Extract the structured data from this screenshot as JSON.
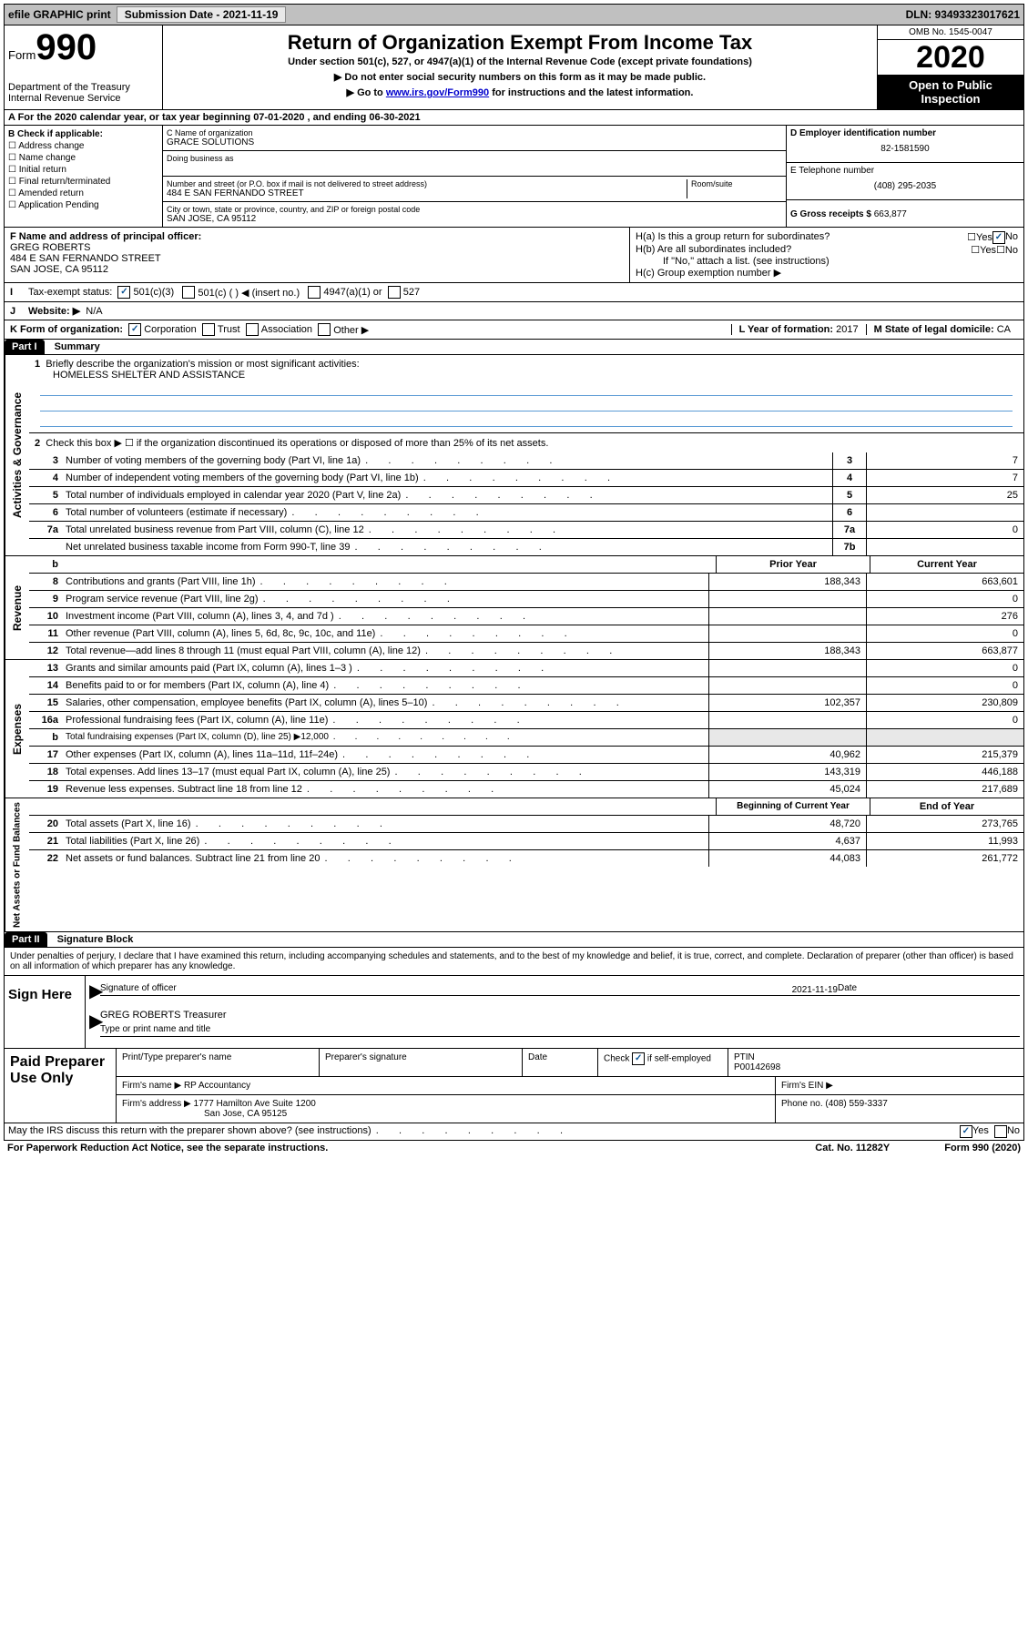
{
  "topbar": {
    "efile": "efile GRAPHIC print",
    "sub_label": "Submission Date - 2021-11-19",
    "dln": "DLN: 93493323017621"
  },
  "header": {
    "form_small": "Form",
    "form_num": "990",
    "dept": "Department of the Treasury",
    "irs": "Internal Revenue Service",
    "title": "Return of Organization Exempt From Income Tax",
    "sub1": "Under section 501(c), 527, or 4947(a)(1) of the Internal Revenue Code (except private foundations)",
    "sub2": "▶ Do not enter social security numbers on this form as it may be made public.",
    "sub3_pre": "▶ Go to ",
    "sub3_link": "www.irs.gov/Form990",
    "sub3_post": " for instructions and the latest information.",
    "omb": "OMB No. 1545-0047",
    "year": "2020",
    "open": "Open to Public Inspection"
  },
  "sectionA": "A For the 2020 calendar year, or tax year beginning 07-01-2020    , and ending 06-30-2021",
  "colB": {
    "title": "B Check if applicable:",
    "items": [
      "Address change",
      "Name change",
      "Initial return",
      "Final return/terminated",
      "Amended return",
      "Application Pending"
    ]
  },
  "colC": {
    "name_label": "C Name of organization",
    "name": "GRACE SOLUTIONS",
    "dba_label": "Doing business as",
    "addr_label": "Number and street (or P.O. box if mail is not delivered to street address)",
    "room_label": "Room/suite",
    "addr": "484 E SAN FERNANDO STREET",
    "city_label": "City or town, state or province, country, and ZIP or foreign postal code",
    "city": "SAN JOSE, CA  95112"
  },
  "colD": {
    "ein_label": "D Employer identification number",
    "ein": "82-1581590",
    "tel_label": "E Telephone number",
    "tel": "(408) 295-2035",
    "gross_label": "G Gross receipts $",
    "gross": "663,877"
  },
  "sectionF": {
    "label": "F Name and address of principal officer:",
    "name": "GREG ROBERTS",
    "addr1": "484 E SAN FERNANDO STREET",
    "addr2": "SAN JOSE, CA  95112"
  },
  "sectionH": {
    "a": "H(a)  Is this a group return for subordinates?",
    "b": "H(b)  Are all subordinates included?",
    "b2": "If \"No,\" attach a list. (see instructions)",
    "c": "H(c)  Group exemption number ▶"
  },
  "taxExempt": {
    "label": "Tax-exempt status:",
    "opts": [
      "501(c)(3)",
      "501(c) (   ) ◀ (insert no.)",
      "4947(a)(1) or",
      "527"
    ]
  },
  "rowJ": {
    "label": "Website: ▶",
    "val": "N/A"
  },
  "rowK": {
    "label": "K Form of organization:",
    "opts": [
      "Corporation",
      "Trust",
      "Association",
      "Other ▶"
    ],
    "l_label": "L Year of formation:",
    "l_val": "2017",
    "m_label": "M State of legal domicile:",
    "m_val": "CA"
  },
  "part1": {
    "hdr": "Part I",
    "title": "Summary"
  },
  "governance": {
    "sidelabel": "Activities & Governance",
    "line1": "Briefly describe the organization's mission or most significant activities:",
    "mission": "HOMELESS SHELTER AND ASSISTANCE",
    "line2": "Check this box ▶ ☐  if the organization discontinued its operations or disposed of more than 25% of its net assets.",
    "rows": [
      {
        "n": "3",
        "label": "Number of voting members of the governing body (Part VI, line 1a)",
        "box": "3",
        "val": "7"
      },
      {
        "n": "4",
        "label": "Number of independent voting members of the governing body (Part VI, line 1b)",
        "box": "4",
        "val": "7"
      },
      {
        "n": "5",
        "label": "Total number of individuals employed in calendar year 2020 (Part V, line 2a)",
        "box": "5",
        "val": "25"
      },
      {
        "n": "6",
        "label": "Total number of volunteers (estimate if necessary)",
        "box": "6",
        "val": ""
      },
      {
        "n": "7a",
        "label": "Total unrelated business revenue from Part VIII, column (C), line 12",
        "box": "7a",
        "val": "0"
      },
      {
        "n": "",
        "label": "Net unrelated business taxable income from Form 990-T, line 39",
        "box": "7b",
        "val": ""
      }
    ]
  },
  "revenue": {
    "sidelabel": "Revenue",
    "hdr_prior": "Prior Year",
    "hdr_current": "Current Year",
    "rows": [
      {
        "n": "8",
        "label": "Contributions and grants (Part VIII, line 1h)",
        "prior": "188,343",
        "curr": "663,601"
      },
      {
        "n": "9",
        "label": "Program service revenue (Part VIII, line 2g)",
        "prior": "",
        "curr": "0"
      },
      {
        "n": "10",
        "label": "Investment income (Part VIII, column (A), lines 3, 4, and 7d )",
        "prior": "",
        "curr": "276"
      },
      {
        "n": "11",
        "label": "Other revenue (Part VIII, column (A), lines 5, 6d, 8c, 9c, 10c, and 11e)",
        "prior": "",
        "curr": "0"
      },
      {
        "n": "12",
        "label": "Total revenue—add lines 8 through 11 (must equal Part VIII, column (A), line 12)",
        "prior": "188,343",
        "curr": "663,877"
      }
    ]
  },
  "expenses": {
    "sidelabel": "Expenses",
    "rows": [
      {
        "n": "13",
        "label": "Grants and similar amounts paid (Part IX, column (A), lines 1–3 )",
        "prior": "",
        "curr": "0"
      },
      {
        "n": "14",
        "label": "Benefits paid to or for members (Part IX, column (A), line 4)",
        "prior": "",
        "curr": "0"
      },
      {
        "n": "15",
        "label": "Salaries, other compensation, employee benefits (Part IX, column (A), lines 5–10)",
        "prior": "102,357",
        "curr": "230,809"
      },
      {
        "n": "16a",
        "label": "Professional fundraising fees (Part IX, column (A), line 11e)",
        "prior": "",
        "curr": "0"
      },
      {
        "n": "b",
        "label": "Total fundraising expenses (Part IX, column (D), line 25) ▶12,000",
        "prior": "SHADE",
        "curr": "SHADE"
      },
      {
        "n": "17",
        "label": "Other expenses (Part IX, column (A), lines 11a–11d, 11f–24e)",
        "prior": "40,962",
        "curr": "215,379"
      },
      {
        "n": "18",
        "label": "Total expenses. Add lines 13–17 (must equal Part IX, column (A), line 25)",
        "prior": "143,319",
        "curr": "446,188"
      },
      {
        "n": "19",
        "label": "Revenue less expenses. Subtract line 18 from line 12",
        "prior": "45,024",
        "curr": "217,689"
      }
    ]
  },
  "netassets": {
    "sidelabel": "Net Assets or Fund Balances",
    "hdr_begin": "Beginning of Current Year",
    "hdr_end": "End of Year",
    "rows": [
      {
        "n": "20",
        "label": "Total assets (Part X, line 16)",
        "prior": "48,720",
        "curr": "273,765"
      },
      {
        "n": "21",
        "label": "Total liabilities (Part X, line 26)",
        "prior": "4,637",
        "curr": "11,993"
      },
      {
        "n": "22",
        "label": "Net assets or fund balances. Subtract line 21 from line 20",
        "prior": "44,083",
        "curr": "261,772"
      }
    ]
  },
  "part2": {
    "hdr": "Part II",
    "title": "Signature Block",
    "decl": "Under penalties of perjury, I declare that I have examined this return, including accompanying schedules and statements, and to the best of my knowledge and belief, it is true, correct, and complete. Declaration of preparer (other than officer) is based on all information of which preparer has any knowledge."
  },
  "sign": {
    "left": "Sign Here",
    "sig_officer": "Signature of officer",
    "date": "Date",
    "date_val": "2021-11-19",
    "name": "GREG ROBERTS Treasurer",
    "type_label": "Type or print name and title"
  },
  "prep": {
    "left": "Paid Preparer Use Only",
    "h1": "Print/Type preparer's name",
    "h2": "Preparer's signature",
    "h3": "Date",
    "h4_a": "Check",
    "h4_b": "if self-employed",
    "h5": "PTIN",
    "ptin": "P00142698",
    "firm_label": "Firm's name    ▶",
    "firm": "RP Accountancy",
    "ein_label": "Firm's EIN ▶",
    "addr_label": "Firm's address ▶",
    "addr1": "1777 Hamilton Ave Suite 1200",
    "addr2": "San Jose, CA  95125",
    "phone_label": "Phone no.",
    "phone": "(408) 559-3337"
  },
  "footer": {
    "discuss": "May the IRS discuss this return with the preparer shown above? (see instructions)",
    "paperwork": "For Paperwork Reduction Act Notice, see the separate instructions.",
    "cat": "Cat. No. 11282Y",
    "form": "Form 990 (2020)"
  }
}
